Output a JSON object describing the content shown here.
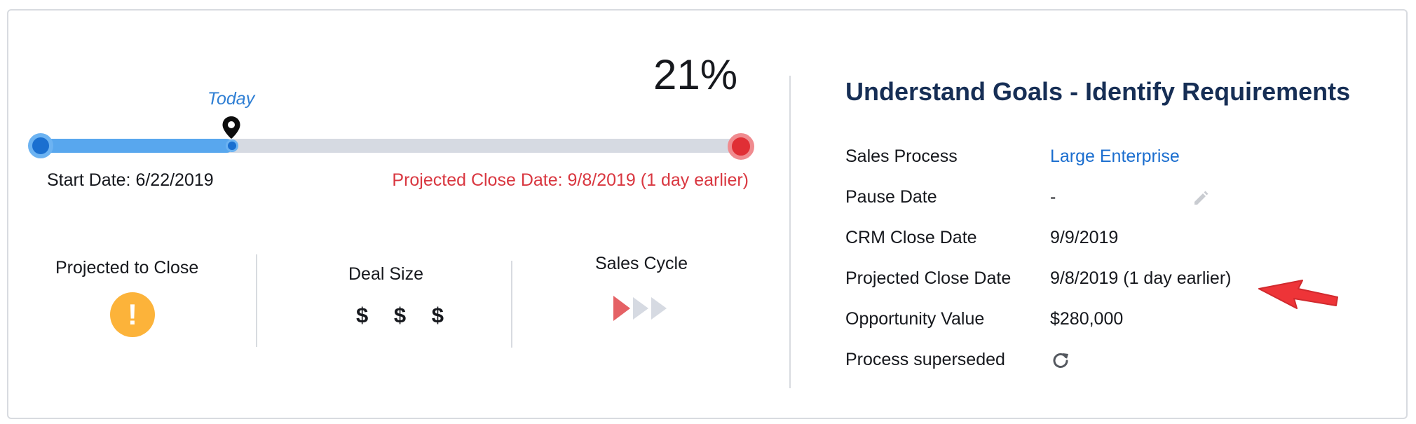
{
  "progress": {
    "percent_label": "21%",
    "percent": 21,
    "today_label": "Today",
    "start_date": "Start Date: 6/22/2019",
    "projected_close": "Projected Close Date: 9/8/2019 (1 day earlier)"
  },
  "metrics": {
    "projected_to_close": {
      "label": "Projected to Close",
      "icon": "warning-icon",
      "glyph": "!"
    },
    "deal_size": {
      "label": "Deal Size",
      "value": "$ $ $"
    },
    "sales_cycle": {
      "label": "Sales Cycle",
      "filled": 1,
      "total": 3
    }
  },
  "details": {
    "title": "Understand Goals - Identify Requirements",
    "rows": [
      {
        "label": "Sales Process",
        "value": "Large Enterprise"
      },
      {
        "label": "Pause Date",
        "value": "-"
      },
      {
        "label": "CRM Close Date",
        "value": "9/9/2019"
      },
      {
        "label": "Projected Close Date",
        "value": "9/8/2019 (1 day earlier)"
      },
      {
        "label": "Opportunity Value",
        "value": "$280,000"
      },
      {
        "label": "Process superseded",
        "value": ""
      }
    ]
  },
  "colors": {
    "accent": "#2f7fd4",
    "progress_fill": "#58a7ee",
    "alert_red": "#d93740",
    "warning": "#fcb33a",
    "title_navy": "#162e55",
    "annotation_arrow": "#ee3438"
  }
}
